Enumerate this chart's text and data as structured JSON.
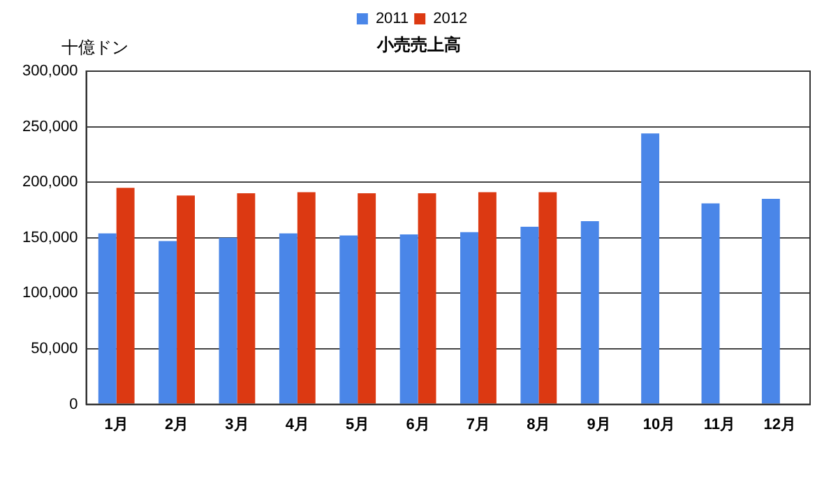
{
  "chart_data": {
    "type": "bar",
    "title": "小売売上高",
    "ylabel": "十億ドン",
    "categories": [
      "1月",
      "2月",
      "3月",
      "4月",
      "5月",
      "6月",
      "7月",
      "8月",
      "9月",
      "10月",
      "11月",
      "12月"
    ],
    "series": [
      {
        "name": "2011",
        "color": "#4a86e8",
        "values": [
          154000,
          147000,
          150000,
          154000,
          152000,
          153000,
          155000,
          160000,
          165000,
          244000,
          181000,
          185000
        ]
      },
      {
        "name": "2012",
        "color": "#dc3912",
        "values": [
          195000,
          188000,
          190000,
          191000,
          190000,
          190000,
          191000,
          191000,
          null,
          null,
          null,
          null
        ]
      }
    ],
    "ylim": [
      0,
      300000
    ],
    "yticks": [
      0,
      {
        "value": 50000,
        "label": "50,000"
      },
      {
        "value": 100000,
        "label": "100,000"
      },
      {
        "value": 150000,
        "label": "150,000"
      },
      {
        "value": 200000,
        "label": "200,000"
      },
      {
        "value": 250000,
        "label": "250,000"
      },
      {
        "value": 300000,
        "label": "300,000"
      }
    ],
    "grid": "y",
    "legend": "top"
  }
}
